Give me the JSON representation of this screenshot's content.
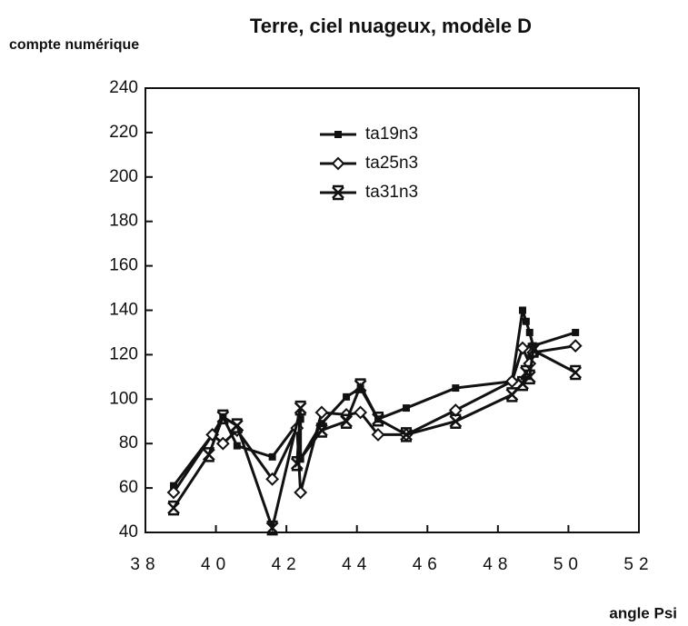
{
  "chart_data": {
    "type": "line",
    "title": "Terre, ciel nuageux, modèle D",
    "y_label": "compte numérique",
    "x_label": "angle Psi",
    "xlim": [
      38,
      52
    ],
    "xticks": [
      38,
      40,
      42,
      44,
      46,
      48,
      50,
      52
    ],
    "ylim": [
      40,
      240
    ],
    "yticks": [
      40,
      60,
      80,
      100,
      120,
      140,
      160,
      180,
      200,
      220,
      240
    ],
    "series": [
      {
        "name": "ta19n3",
        "color": "#111111",
        "marker": "square",
        "x": [
          38.8,
          39.9,
          40.2,
          40.6,
          41.6,
          42.4,
          42.4,
          43.0,
          43.7,
          44.1,
          44.6,
          45.4,
          46.8,
          48.4,
          48.7,
          48.8,
          48.9,
          49.0,
          50.2
        ],
        "values": [
          61,
          84,
          92,
          79,
          74,
          91,
          73,
          89,
          101,
          105,
          91,
          96,
          105,
          108,
          140,
          135,
          130,
          124,
          130
        ]
      },
      {
        "name": "ta25n3",
        "color": "#111111",
        "marker": "diamond",
        "x": [
          38.8,
          39.9,
          40.2,
          40.6,
          41.6,
          42.3,
          42.4,
          43.0,
          43.7,
          44.1,
          44.6,
          45.4,
          46.8,
          48.4,
          48.7,
          48.9,
          49.0,
          50.2
        ],
        "values": [
          58,
          84,
          80,
          86,
          64,
          87,
          58,
          94,
          93,
          94,
          84,
          84,
          95,
          108,
          123,
          116,
          121,
          124
        ]
      },
      {
        "name": "ta31n3",
        "color": "#111111",
        "marker": "star",
        "x": [
          38.8,
          39.8,
          40.2,
          40.6,
          41.6,
          42.4,
          42.3,
          43.0,
          43.7,
          44.1,
          44.6,
          45.4,
          46.8,
          48.4,
          48.7,
          48.8,
          48.9,
          49.0,
          50.2
        ],
        "values": [
          51,
          75,
          92,
          88,
          42,
          96,
          71,
          86,
          90,
          106,
          91,
          84,
          90,
          102,
          107,
          112,
          110,
          122,
          112
        ]
      }
    ]
  }
}
